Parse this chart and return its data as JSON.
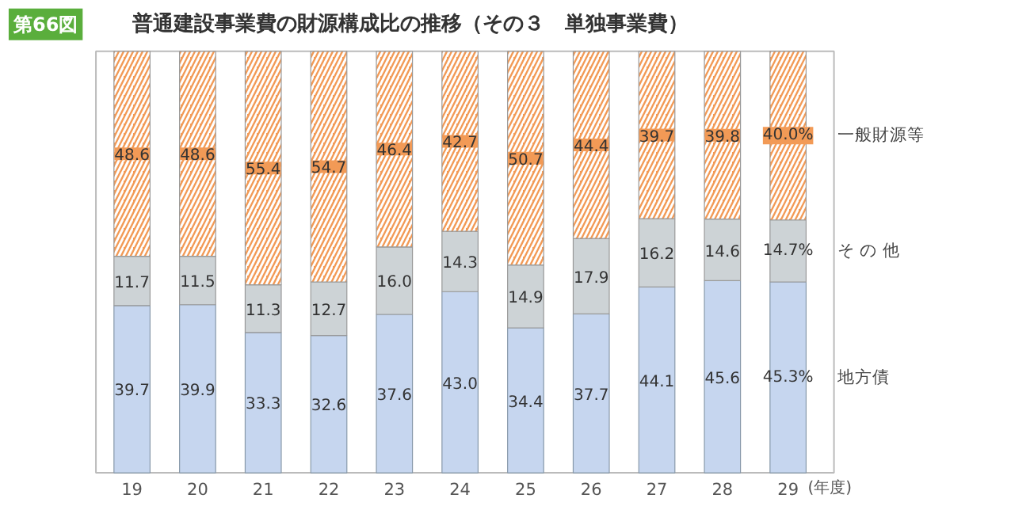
{
  "chart_data": {
    "type": "bar",
    "title": "普通建設事業費の財源構成比の推移（その３　単独事業費）",
    "annotations": [
      "第66図"
    ],
    "xlabel": "(年度)",
    "categories": [
      "19",
      "20",
      "21",
      "22",
      "23",
      "24",
      "25",
      "26",
      "27",
      "28",
      "29"
    ],
    "stacked": true,
    "ylim": [
      0,
      100
    ],
    "tick_labels": "x",
    "series": [
      {
        "name": "地方債",
        "color": "#c6d6ef",
        "values": [
          39.7,
          39.9,
          33.3,
          32.6,
          37.6,
          43.0,
          34.4,
          37.7,
          44.1,
          45.6,
          45.3
        ],
        "value_labels": [
          "39.7",
          "39.9",
          "33.3",
          "32.6",
          "37.6",
          "43.0",
          "34.4",
          "37.7",
          "44.1",
          "45.6",
          "45.3%"
        ]
      },
      {
        "name": "そ の 他",
        "color": "#cdd3d6",
        "values": [
          11.7,
          11.5,
          11.3,
          12.7,
          16.0,
          14.3,
          14.9,
          17.9,
          16.2,
          14.6,
          14.7
        ],
        "value_labels": [
          "11.7",
          "11.5",
          "11.3",
          "12.7",
          "16.0",
          "14.3",
          "14.9",
          "17.9",
          "16.2",
          "14.6",
          "14.7%"
        ]
      },
      {
        "name": "一般財源等",
        "color": "#f29a56",
        "values": [
          48.6,
          48.6,
          55.4,
          54.7,
          46.4,
          42.7,
          50.7,
          44.4,
          39.7,
          39.8,
          40.0
        ],
        "value_labels": [
          "48.6",
          "48.6",
          "55.4",
          "54.7",
          "46.4",
          "42.7",
          "50.7",
          "44.4",
          "39.7",
          "39.8",
          "40.0%"
        ]
      }
    ]
  }
}
